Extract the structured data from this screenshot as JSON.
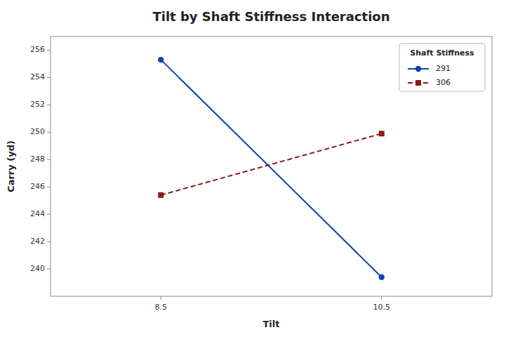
{
  "chart_data": {
    "type": "line",
    "title": "Tilt by Shaft Stiffness Interaction",
    "x_label": "Tilt",
    "y_label": "Carry (yd)",
    "x": [
      8.5,
      10.5
    ],
    "series": [
      {
        "name": "291",
        "color": "#1144aa",
        "marker": "circle",
        "line_style": "solid",
        "values": [
          255.3,
          239.4
        ]
      },
      {
        "name": "306",
        "color": "#8b1a1a",
        "marker": "square",
        "line_style": "dashed",
        "values": [
          245.4,
          249.9
        ]
      }
    ],
    "legend_title": "Shaft Stiffness",
    "legend": "upper right",
    "grid": false,
    "xlim": [
      7.5,
      11.5
    ],
    "xticks": [
      8.5,
      10.5
    ],
    "ylim": [
      238,
      257
    ],
    "yticks": [
      240,
      242,
      244,
      246,
      248,
      250,
      252,
      254,
      256
    ]
  }
}
